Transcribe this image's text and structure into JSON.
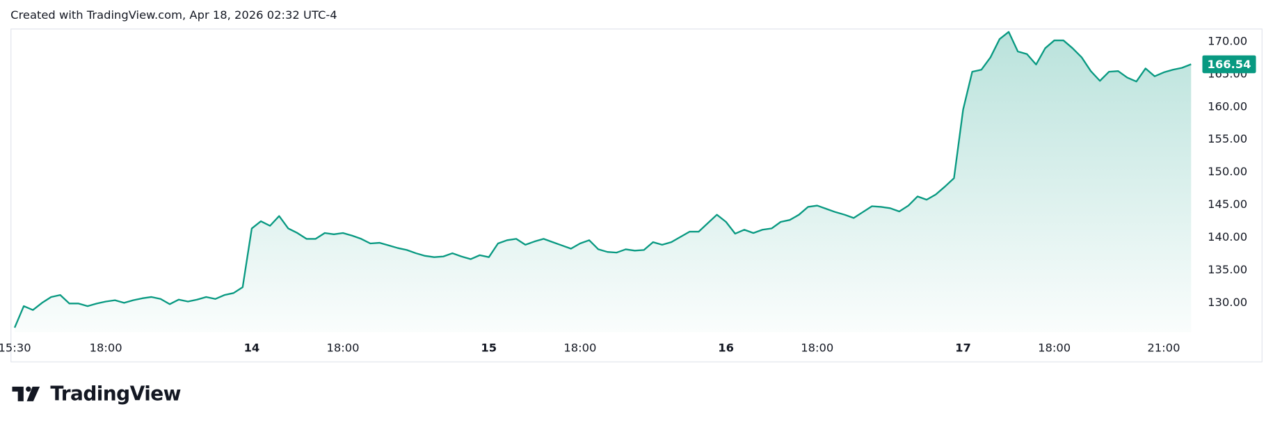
{
  "header": "Created with TradingView.com, Apr 18, 2026 02:32 UTC-4",
  "logo_text": "TradingView",
  "chart_data": {
    "type": "area",
    "color": "#089981",
    "x": [
      0,
      1,
      2,
      3,
      4,
      5,
      6,
      7,
      8,
      9,
      10,
      11,
      12,
      13,
      14,
      15,
      16,
      17,
      18,
      19,
      20,
      21,
      22,
      23,
      24,
      25,
      26,
      27,
      28,
      29,
      30,
      31,
      32,
      33,
      34,
      35,
      36,
      37,
      38,
      39,
      40,
      41,
      42,
      43,
      44,
      45,
      46,
      47,
      48,
      49,
      50,
      51,
      52,
      53,
      54,
      55,
      56,
      57,
      58,
      59,
      60,
      61,
      62,
      63,
      64,
      65,
      66,
      67,
      68,
      69,
      70,
      71,
      72,
      73,
      74,
      75,
      76,
      77,
      78,
      79,
      80,
      81,
      82,
      83,
      84,
      85,
      86,
      87,
      88,
      89,
      90,
      91,
      92,
      93,
      94,
      95,
      96,
      97,
      98,
      99,
      100,
      101,
      102,
      103,
      104,
      105,
      106,
      107,
      108,
      109,
      110,
      111,
      112,
      113,
      114,
      115,
      116,
      117,
      118,
      119,
      120,
      121,
      122,
      123,
      124,
      125,
      126,
      127,
      128,
      129
    ],
    "values": [
      126.2,
      129.5,
      128.9,
      130.0,
      130.9,
      131.2,
      129.9,
      129.9,
      129.5,
      129.9,
      130.2,
      130.4,
      130.0,
      130.4,
      130.7,
      130.9,
      130.6,
      129.8,
      130.5,
      130.2,
      130.5,
      130.9,
      130.6,
      131.2,
      131.5,
      132.4,
      141.4,
      142.5,
      141.8,
      143.3,
      141.4,
      140.7,
      139.8,
      139.8,
      140.7,
      140.5,
      140.7,
      140.3,
      139.8,
      139.1,
      139.2,
      138.8,
      138.4,
      138.1,
      137.6,
      137.2,
      137.0,
      137.1,
      137.6,
      137.1,
      136.7,
      137.3,
      137.0,
      139.1,
      139.6,
      139.8,
      138.9,
      139.4,
      139.8,
      139.3,
      138.8,
      138.3,
      139.1,
      139.6,
      138.2,
      137.8,
      137.7,
      138.2,
      138.0,
      138.1,
      139.3,
      138.9,
      139.3,
      140.1,
      140.9,
      140.9,
      142.2,
      143.5,
      142.4,
      140.6,
      141.2,
      140.7,
      141.2,
      141.4,
      142.4,
      142.7,
      143.5,
      144.7,
      144.9,
      144.4,
      143.9,
      143.5,
      143.0,
      143.9,
      144.8,
      144.7,
      144.5,
      144.0,
      144.9,
      146.3,
      145.8,
      146.6,
      147.8,
      149.1,
      159.6,
      165.4,
      165.7,
      167.6,
      170.4,
      171.5,
      168.5,
      168.1,
      166.5,
      169.0,
      170.2,
      170.2,
      169.0,
      167.6,
      165.5,
      164.0,
      165.4,
      165.5,
      164.5,
      163.9,
      165.9,
      164.7,
      165.3,
      165.7,
      166.0,
      166.54
    ],
    "xlim": [
      -0.45,
      129.7
    ],
    "xticks": [
      {
        "value": 0,
        "label": "15:30"
      },
      {
        "value": 10,
        "label": "18:00"
      },
      {
        "value": 26,
        "label": "14"
      },
      {
        "value": 36,
        "label": "18:00"
      },
      {
        "value": 52,
        "label": "15"
      },
      {
        "value": 62,
        "label": "18:00"
      },
      {
        "value": 78,
        "label": "16"
      },
      {
        "value": 88,
        "label": "18:00"
      },
      {
        "value": 104,
        "label": "17"
      },
      {
        "value": 114,
        "label": "18:00"
      },
      {
        "value": 126,
        "label": "21:00"
      }
    ],
    "ylim": [
      125.5,
      172
    ],
    "yticks": [
      {
        "value": 130,
        "label": "130.00"
      },
      {
        "value": 135,
        "label": "135.00"
      },
      {
        "value": 140,
        "label": "140.00"
      },
      {
        "value": 145,
        "label": "145.00"
      },
      {
        "value": 150,
        "label": "150.00"
      },
      {
        "value": 155,
        "label": "155.00"
      },
      {
        "value": 160,
        "label": "160.00"
      },
      {
        "value": 165,
        "label": "165.00"
      },
      {
        "value": 170,
        "label": "170.00"
      }
    ]
  }
}
